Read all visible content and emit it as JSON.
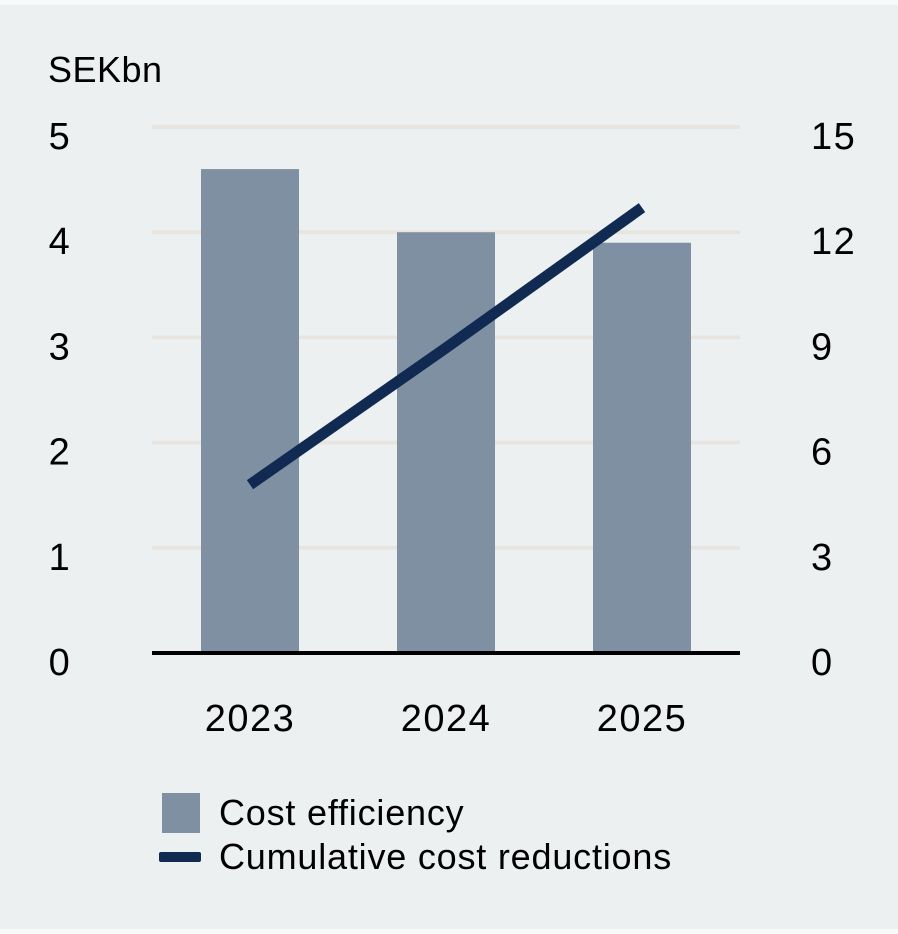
{
  "chart_data": {
    "type": "combo-bar-line",
    "title": "SEKbn",
    "categories": [
      "2023",
      "2024",
      "2025"
    ],
    "series": [
      {
        "name": "Cost efficiency",
        "type": "bar",
        "axis": "left",
        "values": [
          4.6,
          4.0,
          3.9
        ]
      },
      {
        "name": "Cumulative cost reductions",
        "type": "line",
        "axis": "right",
        "values": [
          4.8,
          8.7,
          12.7
        ]
      }
    ],
    "left_axis": {
      "label": "SEKbn",
      "ticks": [
        5,
        4,
        3,
        2,
        1,
        0
      ],
      "range": [
        0,
        5
      ]
    },
    "right_axis": {
      "ticks": [
        15,
        12,
        9,
        6,
        3,
        0
      ],
      "range": [
        0,
        15
      ]
    },
    "grid": true,
    "legend_position": "bottom"
  },
  "colors": {
    "background": "#edf0f1",
    "edge_strip": "#f8fafa",
    "bar": "#8090a3",
    "line": "#112a52",
    "gridline": "#e8e5e1",
    "axis": "#000000",
    "text": "#000000"
  }
}
